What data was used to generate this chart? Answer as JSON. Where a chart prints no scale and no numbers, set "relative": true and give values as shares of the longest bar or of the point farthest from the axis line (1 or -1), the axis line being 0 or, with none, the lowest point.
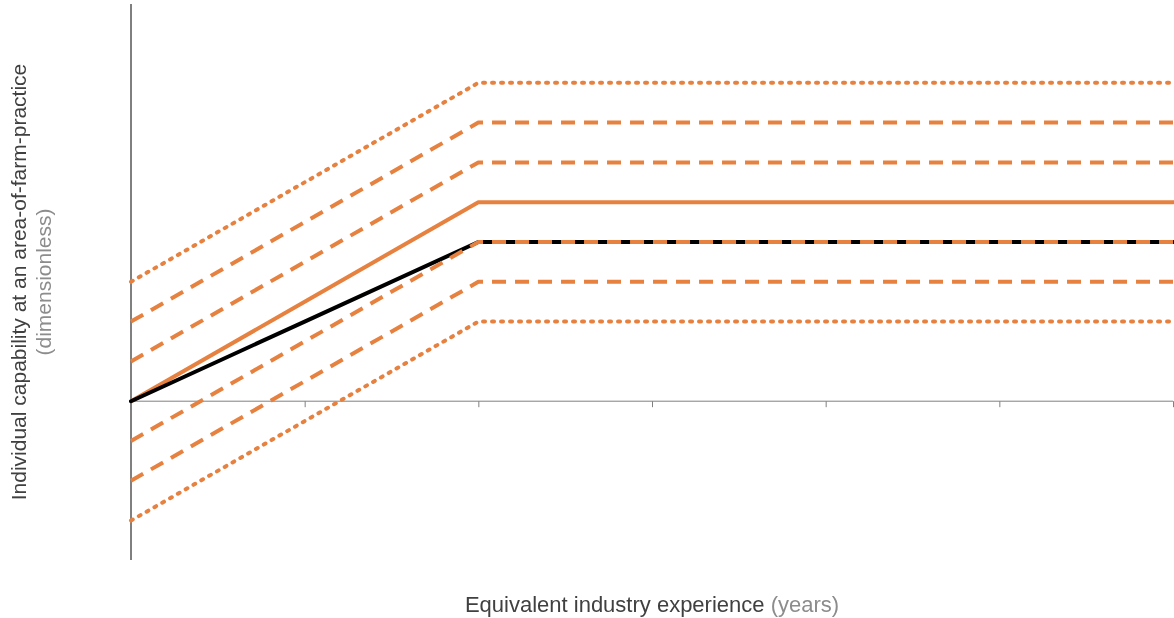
{
  "chart_data": {
    "type": "line",
    "relative": true,
    "xlabel": "Equivalent industry experience (years)",
    "ylabel": "Individual capability at an area-of-farm-practice (dimensionless)",
    "categories": [
      null,
      null,
      null,
      null,
      null,
      null,
      null
    ],
    "marker": "none",
    "series": [
      {
        "color": "#e6813f",
        "line_style": "dotted",
        "values": [
          0.375,
          0.6875,
          1,
          1,
          1,
          1,
          1
        ]
      },
      {
        "color": "#e6813f",
        "line_style": "dashed",
        "values": [
          0.25,
          0.5625,
          0.875,
          0.875,
          0.875,
          0.875,
          0.875
        ]
      },
      {
        "color": "#e6813f",
        "line_style": "dashed",
        "values": [
          0.125,
          0.4375,
          0.75,
          0.75,
          0.75,
          0.75,
          0.75
        ]
      },
      {
        "color": "#e6813f",
        "line_style": "solid",
        "values": [
          0,
          0.3125,
          0.625,
          0.625,
          0.625,
          0.625,
          0.625
        ]
      },
      {
        "color": "#000000",
        "line_style": "solid",
        "values": [
          0,
          0.25,
          0.5,
          0.5,
          0.5,
          0.5,
          0.5
        ]
      },
      {
        "color": "#e6813f",
        "line_style": "dashed",
        "values": [
          -0.125,
          0.1875,
          0.5,
          0.5,
          0.5,
          0.5,
          0.5
        ]
      },
      {
        "color": "#e6813f",
        "line_style": "dashed",
        "values": [
          -0.25,
          0.0625,
          0.375,
          0.375,
          0.375,
          0.375,
          0.375
        ]
      },
      {
        "color": "#e6813f",
        "line_style": "dotted",
        "values": [
          -0.375,
          -0.0625,
          0.25,
          0.25,
          0.25,
          0.25,
          0.25
        ]
      }
    ]
  }
}
